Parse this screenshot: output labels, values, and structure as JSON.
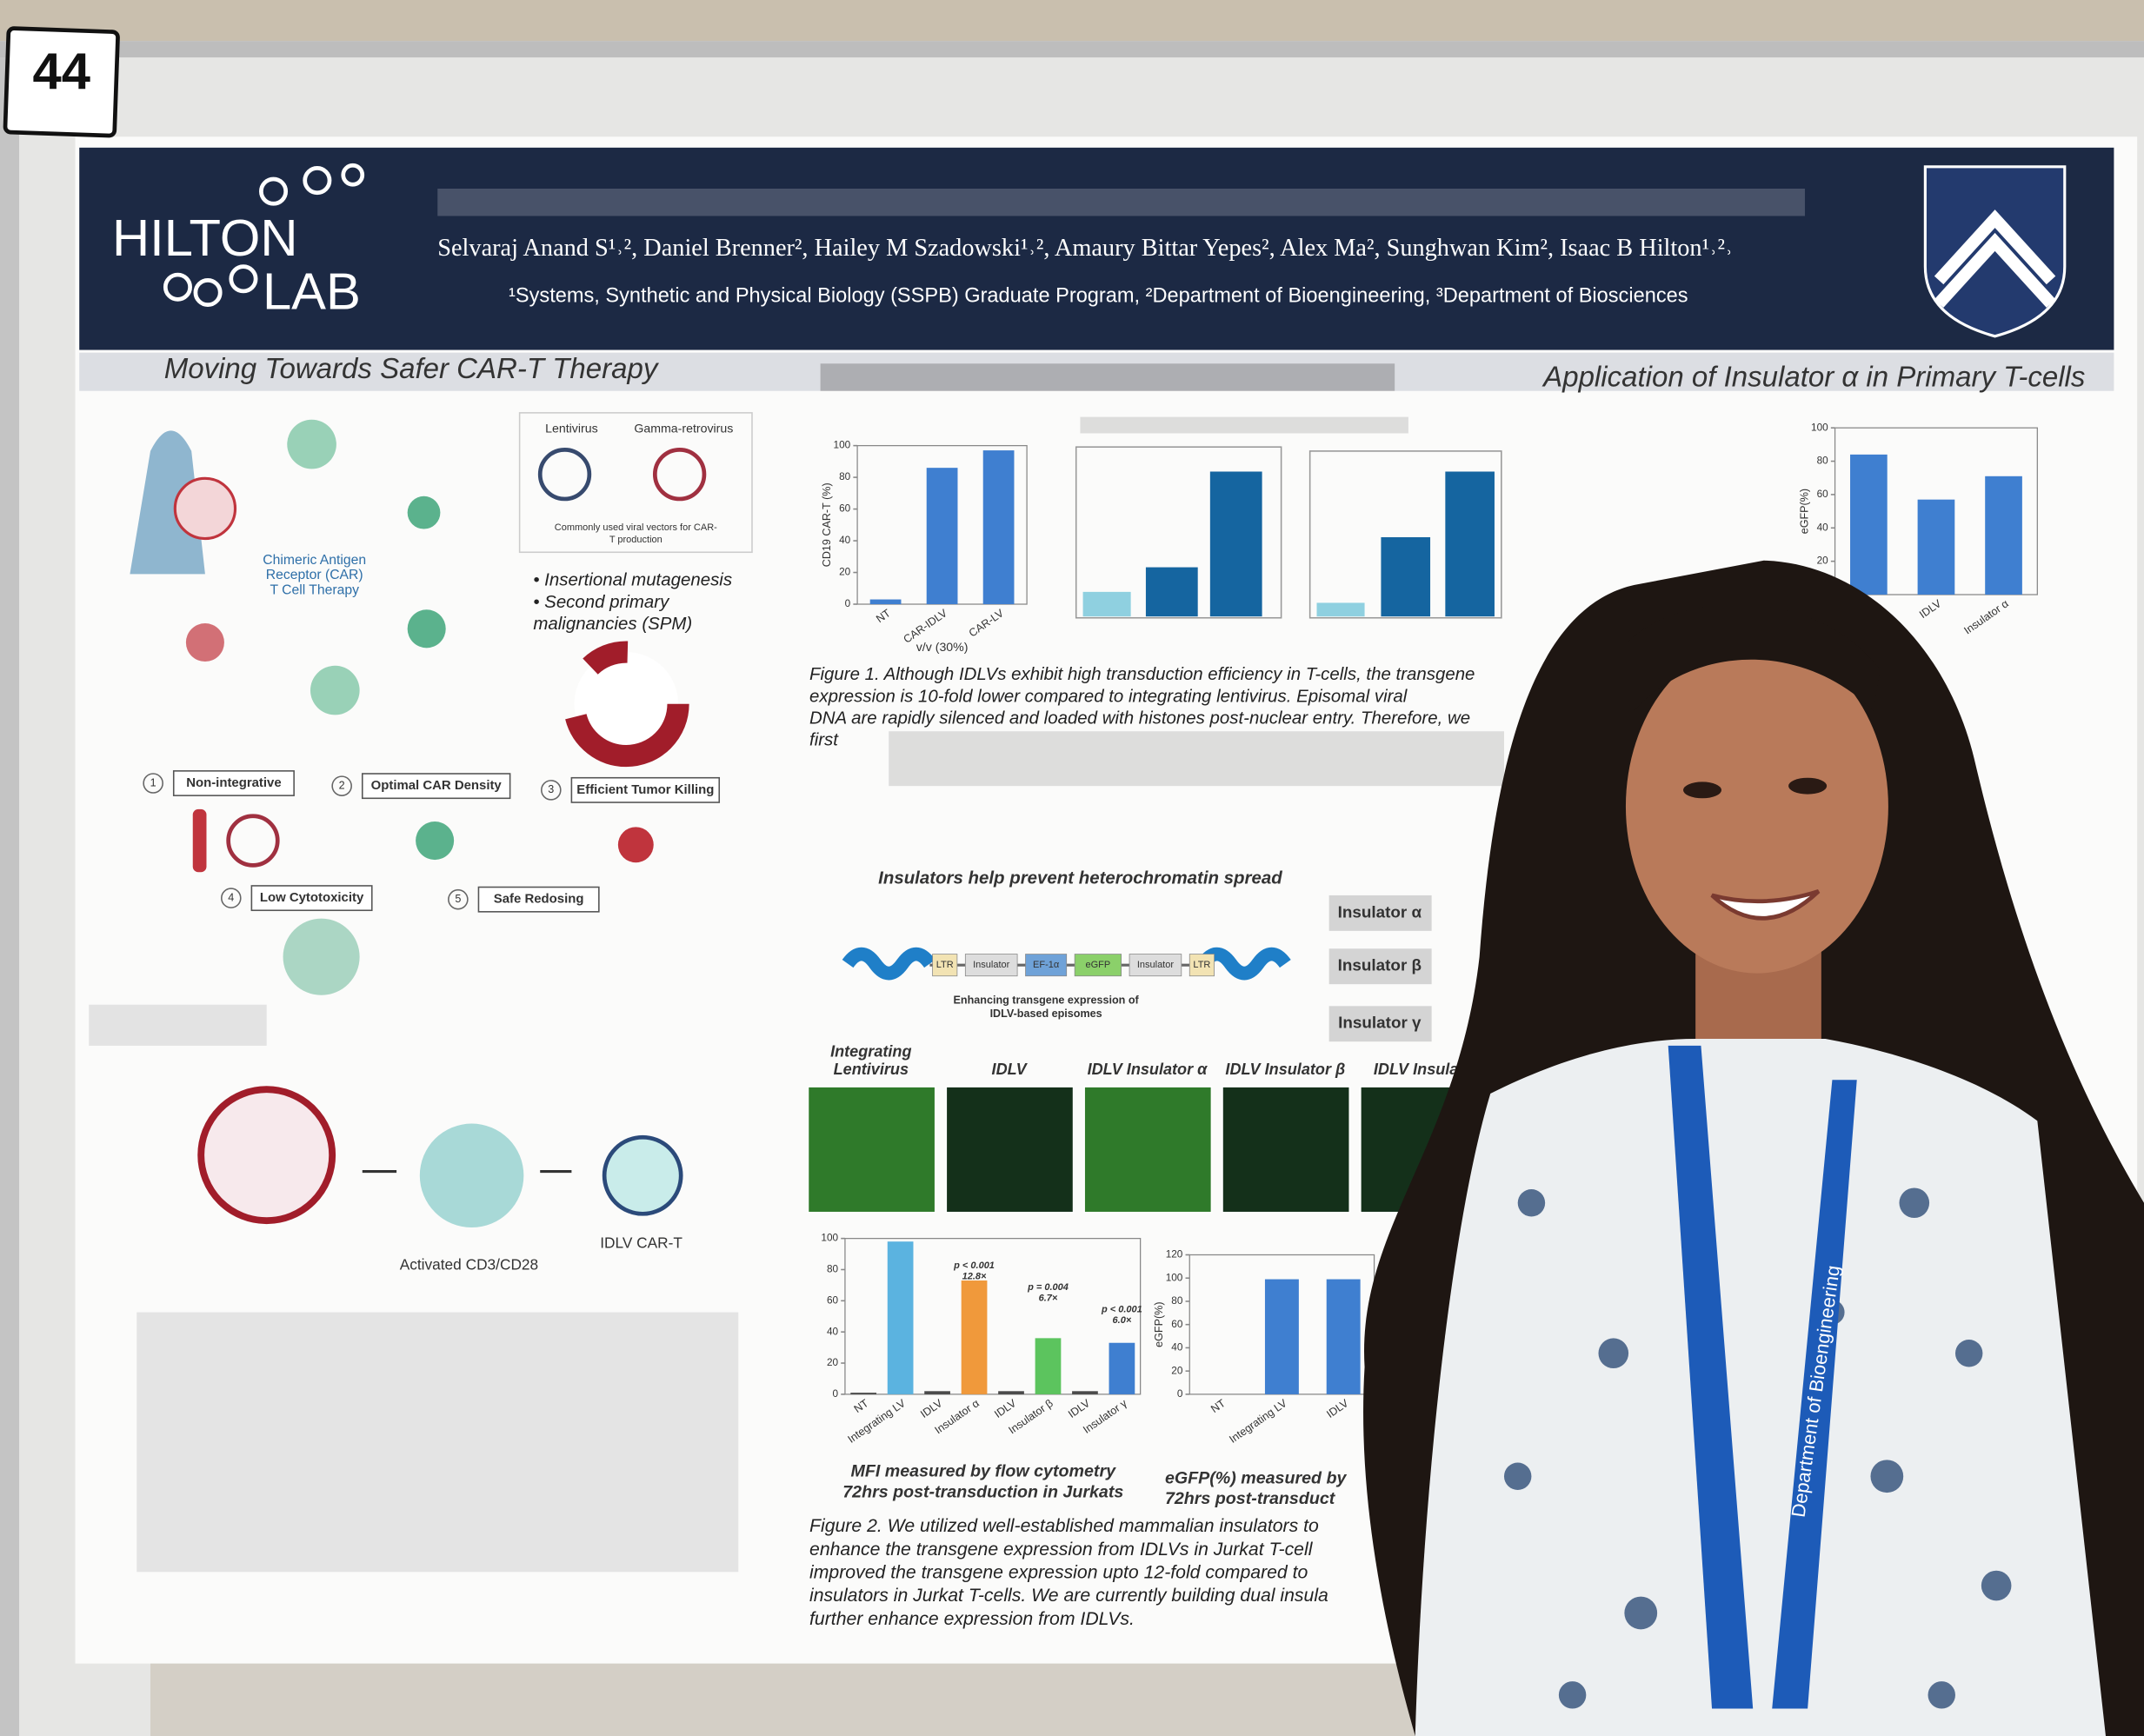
{
  "badge": "44",
  "header": {
    "logo_top": "HILTON",
    "logo_bottom": "LAB",
    "authors": "Selvaraj Anand S¹˒², Daniel Brenner², Hailey M Szadowski¹˒², Amaury Bittar Yepes², Alex Ma², Sunghwan Kim², Isaac B Hilton¹˒²˒",
    "affiliations": "¹Systems, Synthetic and Physical Biology (SSPB) Graduate Program, ²Department of Bioengineering, ³Department of Biosciences"
  },
  "sections": {
    "left": "Moving Towards Safer CAR-T Therapy",
    "right": "Application of Insulator α in Primary T-cells"
  },
  "car_t": {
    "title": [
      "Chimeric Antigen",
      "Receptor (CAR)",
      "T Cell Therapy"
    ],
    "vectors": [
      "Lentivirus",
      "Gamma-retrovirus"
    ],
    "vector_caption": [
      "Commonly used viral vectors for CAR-",
      "T production"
    ],
    "risks": [
      "• Insertional mutagenesis",
      "• Second primary",
      "malignancies (SPM)"
    ],
    "goals": [
      {
        "n": 1,
        "label": "Non-integrative"
      },
      {
        "n": 2,
        "label": "Optimal CAR Density"
      },
      {
        "n": 3,
        "label": "Efficient Tumor Killing"
      },
      {
        "n": 4,
        "label": "Low Cytotoxicity"
      },
      {
        "n": 5,
        "label": "Safe Redosing"
      }
    ],
    "workflow": [
      "Activated CD3/CD28",
      "IDLV CAR-T"
    ]
  },
  "figure1": {
    "caption": [
      "Figure 1. Although IDLVs exhibit high transduction efficiency in T-cells, the transgene",
      "expression is 10-fold lower compared to integrating lentivirus. Episomal viral",
      "DNA are rapidly silenced and loaded with histones post-nuclear entry. Therefore, we",
      "first"
    ]
  },
  "insulators": {
    "title": "Insulators help prevent heterochromatin spread",
    "construct": [
      "LTR",
      "Insulator",
      "EF-1α",
      "eGFP",
      "Insulator",
      "LTR"
    ],
    "note": [
      "Enhancing transgene expression of",
      "IDLV-based episomes"
    ],
    "options": [
      "Insulator α",
      "Insulator β",
      "Insulator γ"
    ],
    "images": [
      [
        "Integrating",
        "Lentivirus"
      ],
      [
        "IDLV"
      ],
      [
        "IDLV Insulator α"
      ],
      [
        "IDLV Insulator β"
      ],
      [
        "IDLV Insulato"
      ]
    ]
  },
  "figure2": {
    "chart_captions": [
      [
        "MFI measured by flow cytometry",
        "72hrs post-transduction in Jurkats"
      ],
      [
        "eGFP(%) measured by",
        "72hrs post-transduct"
      ]
    ],
    "caption": [
      "Figure 2. We utilized well-established mammalian insulators to",
      "enhance the transgene expression from IDLVs in Jurkat T-cell",
      "improved the transgene expression upto 12-fold compared to",
      "insulators in Jurkat T-cells. We are currently building dual insula",
      "further enhance expression from IDLVs."
    ]
  },
  "lanyard": "Department of Bioengineering",
  "chart_data": [
    {
      "type": "bar",
      "y_label": "CD19 CAR-T (%)",
      "x_label": "v/v (30%)",
      "categories": [
        "NT",
        "CAR-IDLV",
        "CAR-LV"
      ],
      "values": [
        3,
        86,
        97
      ],
      "color": "#3f7fd0",
      "ylim": [
        0,
        100
      ],
      "yticks": [
        0,
        20,
        40,
        60,
        80,
        100
      ]
    },
    {
      "type": "bar",
      "categories": [
        "NT",
        "Integrating LV",
        "IDLV",
        "Insulator α",
        "IDLV",
        "Insulator β",
        "IDLV",
        "Insulator γ"
      ],
      "values": [
        1,
        98,
        2,
        73,
        2,
        36,
        2,
        33
      ],
      "colors": [
        "#4a4a4a",
        "#5bb3e0",
        "#4a4a4a",
        "#f0993b",
        "#4a4a4a",
        "#5cc45e",
        "#4a4a4a",
        "#3f7fd0"
      ],
      "ylim": [
        0,
        100
      ],
      "yticks": [
        0,
        20,
        40,
        60,
        80,
        100
      ],
      "annotations": [
        [
          "p < 0.001",
          "12.8×"
        ],
        [
          "p = 0.004",
          "6.7×"
        ],
        [
          "p < 0.001",
          "6.0×"
        ]
      ]
    },
    {
      "type": "bar",
      "y_label": "eGFP(%)",
      "categories": [
        "NT",
        "Integrating LV",
        "IDLV"
      ],
      "values": [
        0,
        99,
        99
      ],
      "color": "#3f7fd0",
      "ylim": [
        0,
        120
      ],
      "yticks": [
        0,
        20,
        40,
        60,
        80,
        100,
        120
      ]
    },
    {
      "type": "bar",
      "y_label": "eGFP(%)",
      "categories": [
        null,
        "IDLV",
        "Insulator α"
      ],
      "values": [
        84,
        57,
        71
      ],
      "color": "#3f7fd0",
      "ylim": [
        0,
        100
      ],
      "yticks": [
        0,
        20,
        40,
        60,
        80,
        100
      ]
    }
  ]
}
